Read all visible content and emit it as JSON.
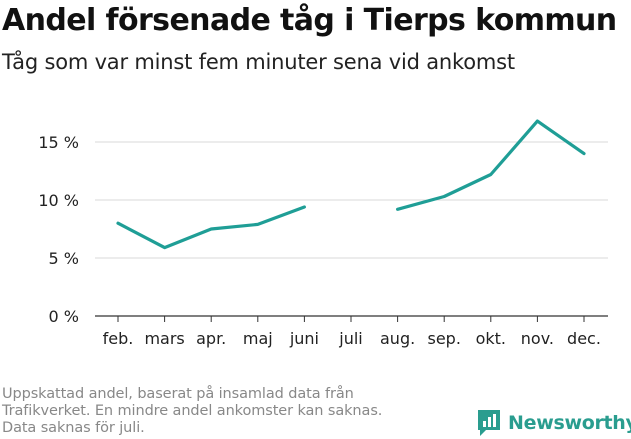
{
  "header": {
    "title": "Andel försenade tåg i Tierps kommun",
    "subtitle": "Tåg som var minst fem minuter sena vid ankomst"
  },
  "chart_data": {
    "type": "line",
    "categories": [
      "feb.",
      "mars",
      "apr.",
      "maj",
      "juni",
      "juli",
      "aug.",
      "sep.",
      "okt.",
      "nov.",
      "dec."
    ],
    "series": [
      {
        "values": [
          8.0,
          5.9,
          7.5,
          7.9,
          9.4,
          null,
          9.2,
          10.3,
          12.2,
          16.8,
          14.0
        ]
      }
    ],
    "y_ticks": [
      0,
      5,
      10,
      15
    ],
    "y_tick_labels": [
      "0 %",
      "5 %",
      "10 %",
      "15 %"
    ],
    "ylim": [
      0,
      17.5
    ],
    "grid": true,
    "line_color": "#1f9e96"
  },
  "footnote": {
    "lines": [
      "Uppskattad andel, baserat på insamlad data från",
      "Trafikverket. En mindre andel ankomster kan saknas.",
      "Data saknas för juli."
    ]
  },
  "brand": {
    "name": "Newsworthy",
    "icon": "newsworthy-logo-icon",
    "color": "#2a9d8f"
  }
}
